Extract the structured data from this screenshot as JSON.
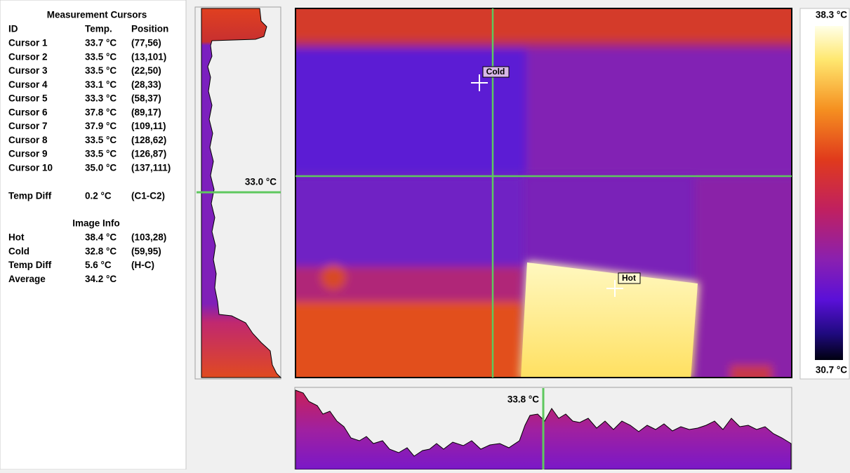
{
  "panel": {
    "title": "Measurement Cursors",
    "columns": [
      "ID",
      "Temp.",
      "Position"
    ],
    "rows": [
      [
        "Cursor 1",
        "33.7 °C",
        "(77,56)"
      ],
      [
        "Cursor 2",
        "33.5 °C",
        "(13,101)"
      ],
      [
        "Cursor 3",
        "33.5 °C",
        "(22,50)"
      ],
      [
        "Cursor 4",
        "33.1 °C",
        "(28,33)"
      ],
      [
        "Cursor 5",
        "33.3 °C",
        "(58,37)"
      ],
      [
        "Cursor 6",
        "37.8 °C",
        "(89,17)"
      ],
      [
        "Cursor 7",
        "37.9 °C",
        "(109,11)"
      ],
      [
        "Cursor 8",
        "33.5 °C",
        "(128,62)"
      ],
      [
        "Cursor 9",
        "33.5 °C",
        "(126,87)"
      ],
      [
        "Cursor 10",
        "35.0 °C",
        "(137,111)"
      ]
    ],
    "temp_diff": [
      "Temp Diff",
      "0.2 °C",
      "(C1-C2)"
    ]
  },
  "image_info": {
    "title": "Image Info",
    "rows": [
      [
        "Hot",
        "38.4 °C",
        "(103,28)"
      ],
      [
        "Cold",
        "32.8 °C",
        "(59,95)"
      ],
      [
        "Temp Diff",
        "5.6 °C",
        "(H-C)"
      ],
      [
        "Average",
        "34.2 °C"
      ]
    ]
  },
  "vertical_profile": {
    "label": "33.0 °C"
  },
  "horizontal_profile": {
    "label": "33.8 °C"
  },
  "image": {
    "markers": [
      "Cold",
      "Hot"
    ]
  },
  "scale": {
    "max": "38.3 °C",
    "min": "30.7 °C"
  }
}
